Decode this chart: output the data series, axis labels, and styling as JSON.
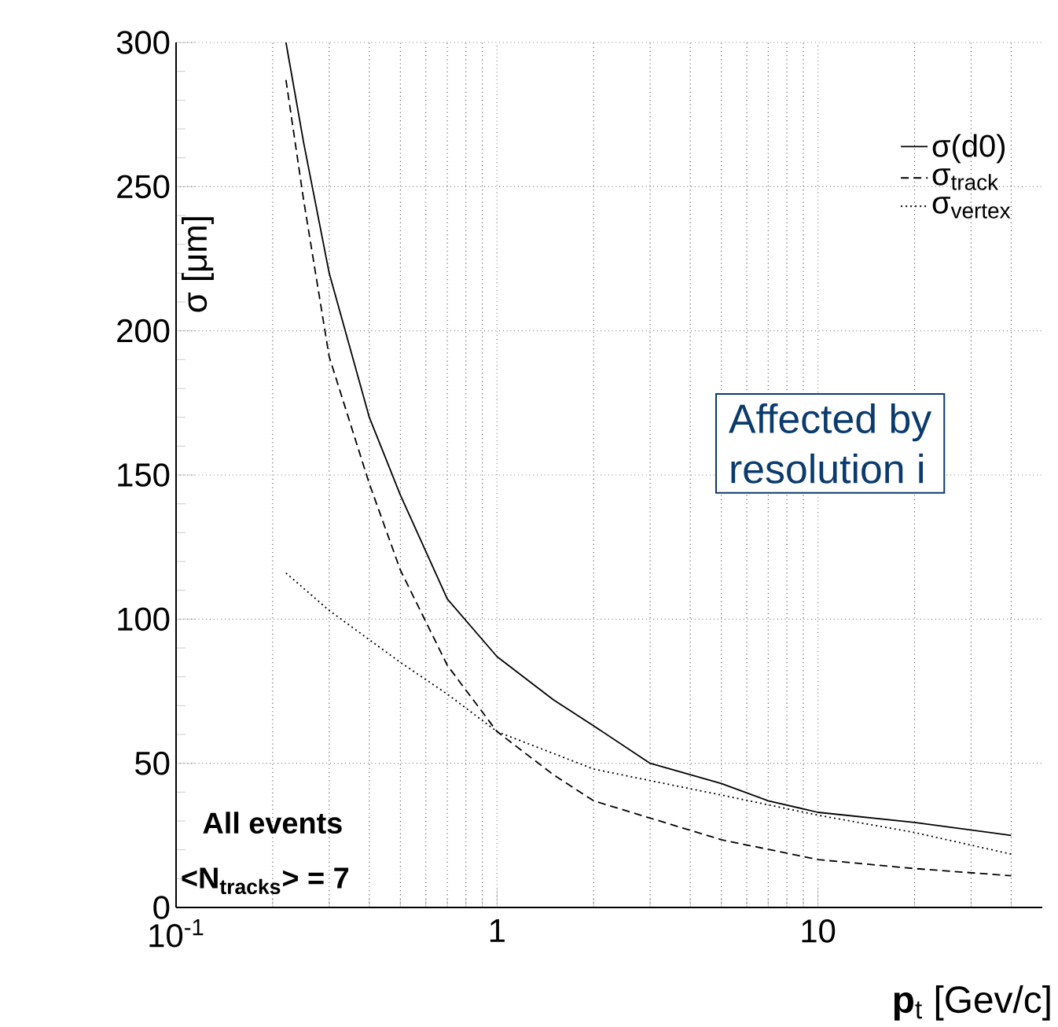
{
  "chart_data": {
    "type": "line",
    "xlabel": "**p**$_{t}$ [Gev/c]",
    "ylabel": "σ [μm]",
    "log": "x",
    "grid": true,
    "legend": "top right",
    "xlim": [
      0.1,
      50
    ],
    "ylim": [
      0,
      300
    ],
    "xticks": [
      {
        "value": 0.1,
        "label": "10$^{-1}$"
      },
      1,
      10
    ],
    "yticks": [
      0,
      50,
      100,
      150,
      200,
      250,
      300
    ],
    "annotations": [
      "**All events**",
      "**<N$_{tracks}$> = 7**",
      "Affected by",
      "resolution i"
    ],
    "series": [
      {
        "name": "σ(d0)",
        "color": "#000000",
        "line_style": "solid",
        "x": [
          0.22,
          0.25,
          0.3,
          0.4,
          0.5,
          0.7,
          1,
          1.5,
          2,
          3,
          5,
          7,
          10,
          20,
          40
        ],
        "values": [
          300,
          265,
          220,
          170,
          143,
          107,
          87,
          72,
          63,
          50,
          43,
          37,
          33,
          29.5,
          25
        ]
      },
      {
        "name": "σ$_{track}$",
        "color": "#000000",
        "line_style": "dashed",
        "x": [
          0.22,
          0.25,
          0.3,
          0.4,
          0.5,
          0.7,
          1,
          1.5,
          2,
          3,
          5,
          10,
          20,
          40
        ],
        "values": [
          287,
          245,
          191,
          147,
          117,
          84,
          61,
          46,
          37,
          31,
          23.5,
          16.6,
          13.5,
          11
        ]
      },
      {
        "name": "σ$_{vertex}$",
        "color": "#000000",
        "line_style": "dotted",
        "x": [
          0.22,
          0.3,
          0.5,
          0.7,
          1,
          2,
          3,
          5,
          10,
          20,
          40
        ],
        "values": [
          116,
          103,
          85,
          74,
          61,
          48,
          44,
          39,
          32,
          26,
          18.5
        ]
      }
    ]
  }
}
